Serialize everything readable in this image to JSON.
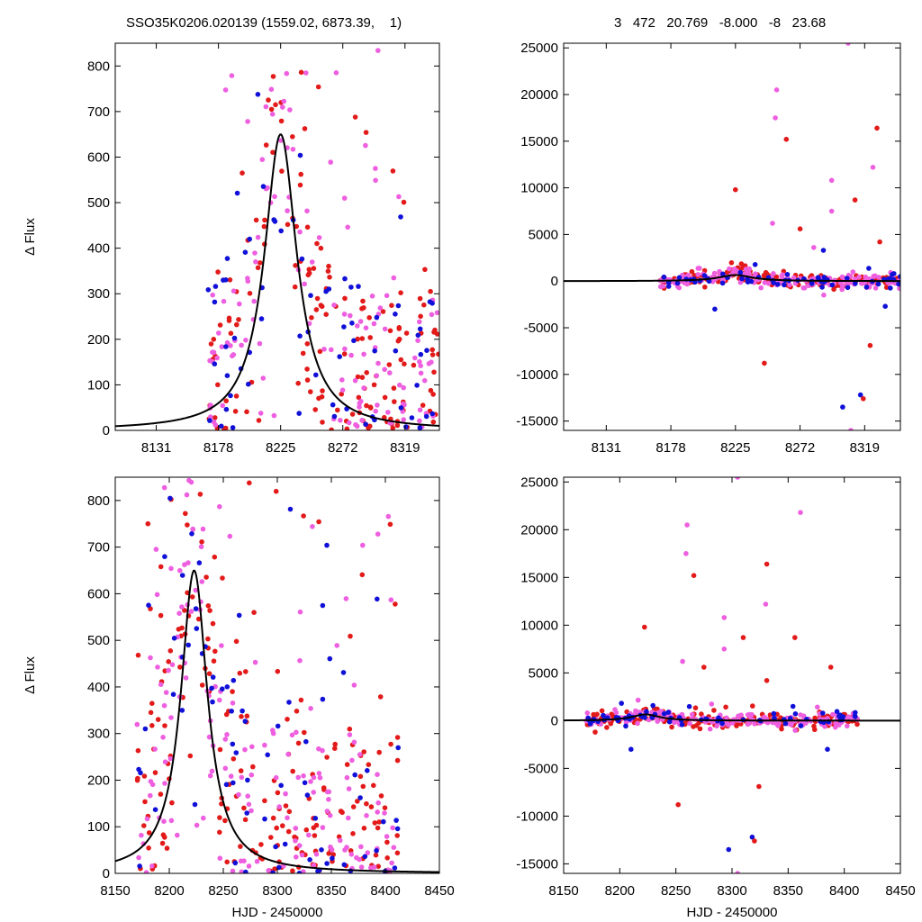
{
  "header": {
    "left": "SSO35K0206.020139 (1559.02, 6873.39,    1)",
    "right": "3   472   20.769   -8.000   -8   23.68"
  },
  "colors": {
    "red": "#e31a1a",
    "magenta": "#ee5fe0",
    "blue": "#1010d8",
    "fit": "#000000"
  },
  "chart_data": [
    {
      "type": "scatter",
      "panel": "top-left",
      "xlim": [
        8100,
        8345
      ],
      "ylim": [
        0,
        850
      ],
      "x_ticks": [
        8131,
        8178,
        8225,
        8272,
        8319
      ],
      "y_ticks": [
        0,
        100,
        200,
        300,
        400,
        500,
        600,
        700,
        800
      ],
      "ylabel": "Δ Flux",
      "xlabel": "",
      "model": {
        "peak_x": 8225,
        "peak_y": 650,
        "width": 15
      },
      "scatter_region": {
        "x": [
          8170,
          8345
        ],
        "y": [
          0,
          850
        ],
        "n_red": 170,
        "n_magenta": 140,
        "n_blue": 70
      }
    },
    {
      "type": "scatter",
      "panel": "top-right",
      "xlim": [
        8100,
        8345
      ],
      "ylim": [
        -16000,
        25500
      ],
      "x_ticks": [
        8131,
        8178,
        8225,
        8272,
        8319
      ],
      "y_ticks": [
        -15000,
        -10000,
        -5000,
        0,
        5000,
        10000,
        15000,
        20000,
        25000
      ],
      "ylabel": "",
      "xlabel": "",
      "model": {
        "peak_x": 8225,
        "peak_y": 650,
        "width": 15
      },
      "scatter_region": {
        "x": [
          8170,
          8345
        ],
        "y": [
          -1000,
          1500
        ],
        "n_red": 170,
        "n_magenta": 160,
        "n_blue": 60
      },
      "outliers": [
        {
          "x": 8225,
          "y": 9800,
          "c": "red"
        },
        {
          "x": 8255,
          "y": 20500,
          "c": "magenta"
        },
        {
          "x": 8254,
          "y": 17500,
          "c": "magenta"
        },
        {
          "x": 8262,
          "y": 15200,
          "c": "red"
        },
        {
          "x": 8295,
          "y": 10800,
          "c": "magenta"
        },
        {
          "x": 8312,
          "y": 8700,
          "c": "red"
        },
        {
          "x": 8307,
          "y": 25500,
          "c": "magenta"
        },
        {
          "x": 8328,
          "y": 16400,
          "c": "red"
        },
        {
          "x": 8325,
          "y": 12200,
          "c": "magenta"
        },
        {
          "x": 8252,
          "y": 6200,
          "c": "magenta"
        },
        {
          "x": 8272,
          "y": 5600,
          "c": "red"
        },
        {
          "x": 8295,
          "y": 7500,
          "c": "magenta"
        },
        {
          "x": 8330,
          "y": 4200,
          "c": "red"
        },
        {
          "x": 8282,
          "y": 3600,
          "c": "magenta"
        },
        {
          "x": 8246,
          "y": -8800,
          "c": "red"
        },
        {
          "x": 8323,
          "y": -6900,
          "c": "red"
        },
        {
          "x": 8303,
          "y": -13500,
          "c": "blue"
        },
        {
          "x": 8316,
          "y": -12200,
          "c": "blue"
        },
        {
          "x": 8318,
          "y": -12600,
          "c": "red"
        },
        {
          "x": 8309,
          "y": -16000,
          "c": "magenta"
        },
        {
          "x": 8289,
          "y": 3300,
          "c": "blue"
        },
        {
          "x": 8210,
          "y": -3000,
          "c": "blue"
        },
        {
          "x": 8334,
          "y": -2700,
          "c": "blue"
        }
      ]
    },
    {
      "type": "scatter",
      "panel": "bottom-left",
      "xlim": [
        8150,
        8450
      ],
      "ylim": [
        0,
        850
      ],
      "x_ticks": [
        8150,
        8200,
        8250,
        8300,
        8350,
        8400,
        8450
      ],
      "y_ticks": [
        0,
        100,
        200,
        300,
        400,
        500,
        600,
        700,
        800
      ],
      "ylabel": "Δ Flux",
      "xlabel": "HJD - 2450000",
      "model": {
        "peak_x": 8223,
        "peak_y": 650,
        "width": 15
      },
      "scatter_region": {
        "x": [
          8170,
          8412
        ],
        "y": [
          0,
          850
        ],
        "n_red": 200,
        "n_magenta": 170,
        "n_blue": 80
      }
    },
    {
      "type": "scatter",
      "panel": "bottom-right",
      "xlim": [
        8150,
        8450
      ],
      "ylim": [
        -16000,
        25500
      ],
      "x_ticks": [
        8150,
        8200,
        8250,
        8300,
        8350,
        8400,
        8450
      ],
      "y_ticks": [
        -15000,
        -10000,
        -5000,
        0,
        5000,
        10000,
        15000,
        20000,
        25000
      ],
      "ylabel": "",
      "xlabel": "HJD - 2450000",
      "model": {
        "peak_x": 8223,
        "peak_y": 650,
        "width": 15
      },
      "scatter_region": {
        "x": [
          8170,
          8412
        ],
        "y": [
          -1000,
          1500
        ],
        "n_red": 200,
        "n_magenta": 180,
        "n_blue": 70
      },
      "outliers": [
        {
          "x": 8222,
          "y": 9800,
          "c": "red"
        },
        {
          "x": 8260,
          "y": 20500,
          "c": "magenta"
        },
        {
          "x": 8259,
          "y": 17500,
          "c": "magenta"
        },
        {
          "x": 8266,
          "y": 15200,
          "c": "red"
        },
        {
          "x": 8293,
          "y": 10800,
          "c": "magenta"
        },
        {
          "x": 8310,
          "y": 8700,
          "c": "red"
        },
        {
          "x": 8305,
          "y": 25500,
          "c": "magenta"
        },
        {
          "x": 8331,
          "y": 16400,
          "c": "red"
        },
        {
          "x": 8330,
          "y": 12200,
          "c": "magenta"
        },
        {
          "x": 8356,
          "y": 8700,
          "c": "red"
        },
        {
          "x": 8361,
          "y": 21800,
          "c": "magenta"
        },
        {
          "x": 8256,
          "y": 6200,
          "c": "magenta"
        },
        {
          "x": 8275,
          "y": 5600,
          "c": "red"
        },
        {
          "x": 8293,
          "y": 7500,
          "c": "magenta"
        },
        {
          "x": 8331,
          "y": 4200,
          "c": "red"
        },
        {
          "x": 8388,
          "y": 5600,
          "c": "red"
        },
        {
          "x": 8252,
          "y": -8800,
          "c": "red"
        },
        {
          "x": 8324,
          "y": -6900,
          "c": "red"
        },
        {
          "x": 8297,
          "y": -13500,
          "c": "blue"
        },
        {
          "x": 8318,
          "y": -12200,
          "c": "blue"
        },
        {
          "x": 8320,
          "y": -12600,
          "c": "red"
        },
        {
          "x": 8305,
          "y": -16000,
          "c": "magenta"
        },
        {
          "x": 8210,
          "y": -3000,
          "c": "blue"
        },
        {
          "x": 8385,
          "y": -3000,
          "c": "blue"
        }
      ]
    }
  ]
}
